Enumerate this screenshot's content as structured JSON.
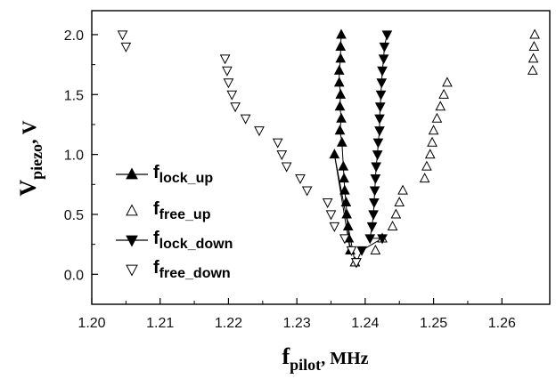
{
  "chart_data": {
    "type": "scatter",
    "title": "",
    "xlabel": {
      "main": "f",
      "sub": "pilot",
      "unit": ", MHz"
    },
    "ylabel": {
      "main": "V",
      "sub": "piezo",
      "unit": ", V"
    },
    "xlim": [
      1.2,
      1.267
    ],
    "ylim": [
      -0.25,
      2.2
    ],
    "xticks": [
      1.2,
      1.21,
      1.22,
      1.23,
      1.24,
      1.25,
      1.26
    ],
    "xtick_labels": [
      "1.20",
      "1.21",
      "1.22",
      "1.23",
      "1.24",
      "1.25",
      "1.26"
    ],
    "yticks": [
      0.0,
      0.5,
      1.0,
      1.5,
      2.0
    ],
    "ytick_labels": [
      "0.0",
      "0.5",
      "1.0",
      "1.5",
      "2.0"
    ],
    "grid": false,
    "legend_position": "middle-left",
    "series": [
      {
        "name_main": "f",
        "name_sub": "lock_up",
        "marker": "triangle-up",
        "filled": true,
        "connected": true,
        "points": [
          [
            1.2365,
            2.0
          ],
          [
            1.2364,
            1.9
          ],
          [
            1.2364,
            1.8
          ],
          [
            1.2362,
            1.7
          ],
          [
            1.2362,
            1.6
          ],
          [
            1.2364,
            1.5
          ],
          [
            1.2363,
            1.4
          ],
          [
            1.2365,
            1.3
          ],
          [
            1.2363,
            1.2
          ],
          [
            1.2366,
            1.1
          ],
          [
            1.2368,
            0.9
          ],
          [
            1.2369,
            0.8
          ],
          [
            1.237,
            0.7
          ],
          [
            1.2372,
            0.6
          ],
          [
            1.2373,
            0.5
          ],
          [
            1.2375,
            0.4
          ],
          [
            1.2376,
            0.3
          ],
          [
            1.2378,
            0.2
          ],
          [
            1.2355,
            1.0
          ],
          [
            1.2385,
            0.1
          ]
        ]
      },
      {
        "name_main": "f",
        "name_sub": "free_up",
        "marker": "triangle-up",
        "filled": false,
        "connected": false,
        "points": [
          [
            1.2648,
            2.0
          ],
          [
            1.2647,
            1.9
          ],
          [
            1.2646,
            1.8
          ],
          [
            1.2645,
            1.7
          ],
          [
            1.252,
            1.6
          ],
          [
            1.2515,
            1.5
          ],
          [
            1.251,
            1.4
          ],
          [
            1.2505,
            1.3
          ],
          [
            1.25,
            1.2
          ],
          [
            1.2498,
            1.1
          ],
          [
            1.2495,
            1.0
          ],
          [
            1.249,
            0.9
          ],
          [
            1.2487,
            0.8
          ],
          [
            1.2455,
            0.7
          ],
          [
            1.245,
            0.6
          ],
          [
            1.2445,
            0.5
          ],
          [
            1.244,
            0.4
          ],
          [
            1.2425,
            0.3
          ],
          [
            1.2415,
            0.2
          ],
          [
            1.2385,
            0.1
          ]
        ]
      },
      {
        "name_main": "f",
        "name_sub": "lock_down",
        "marker": "triangle-down",
        "filled": true,
        "connected": true,
        "points": [
          [
            1.2432,
            2.0
          ],
          [
            1.2428,
            1.9
          ],
          [
            1.2427,
            1.8
          ],
          [
            1.2425,
            1.7
          ],
          [
            1.2424,
            1.6
          ],
          [
            1.2423,
            1.5
          ],
          [
            1.2422,
            1.4
          ],
          [
            1.2421,
            1.3
          ],
          [
            1.2421,
            1.2
          ],
          [
            1.2419,
            1.1
          ],
          [
            1.2418,
            1.0
          ],
          [
            1.2416,
            0.9
          ],
          [
            1.2415,
            0.8
          ],
          [
            1.2414,
            0.7
          ],
          [
            1.2413,
            0.6
          ],
          [
            1.2412,
            0.5
          ],
          [
            1.241,
            0.4
          ],
          [
            1.2407,
            0.3
          ],
          [
            1.2425,
            0.3
          ],
          [
            1.2395,
            0.2
          ],
          [
            1.2387,
            0.1
          ]
        ]
      },
      {
        "name_main": "f",
        "name_sub": "free_down",
        "marker": "triangle-down",
        "filled": false,
        "connected": false,
        "points": [
          [
            1.2045,
            2.0
          ],
          [
            1.205,
            1.9
          ],
          [
            1.2195,
            1.8
          ],
          [
            1.2198,
            1.7
          ],
          [
            1.22,
            1.6
          ],
          [
            1.2205,
            1.5
          ],
          [
            1.221,
            1.4
          ],
          [
            1.2225,
            1.3
          ],
          [
            1.2245,
            1.2
          ],
          [
            1.2272,
            1.1
          ],
          [
            1.2278,
            1.0
          ],
          [
            1.2285,
            0.9
          ],
          [
            1.2305,
            0.8
          ],
          [
            1.2315,
            0.7
          ],
          [
            1.2345,
            0.6
          ],
          [
            1.235,
            0.5
          ],
          [
            1.2355,
            0.4
          ],
          [
            1.237,
            0.3
          ],
          [
            1.238,
            0.2
          ],
          [
            1.2387,
            0.1
          ]
        ]
      }
    ]
  }
}
